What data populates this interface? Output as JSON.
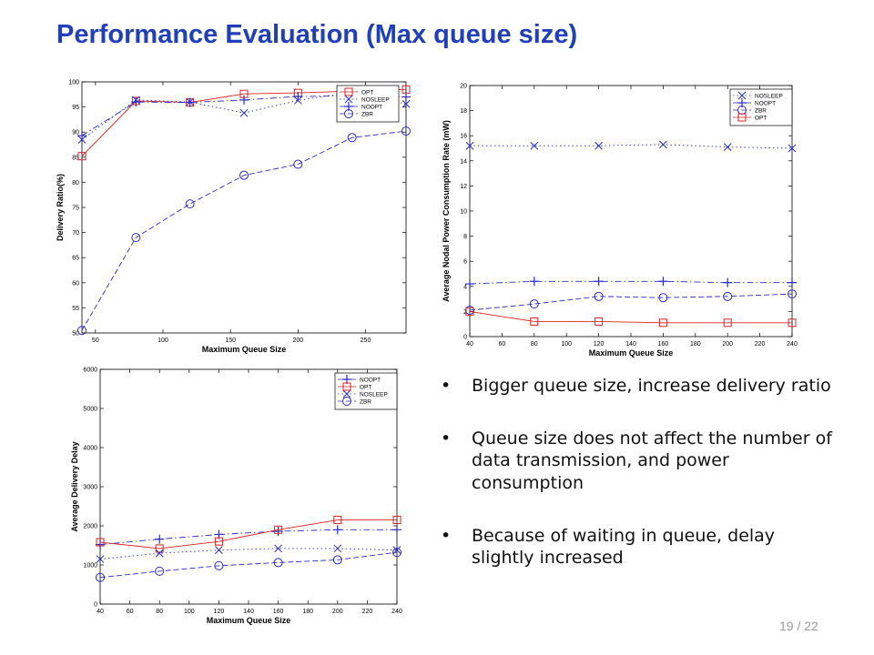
{
  "slide": {
    "title": "Performance Evaluation (Max queue size)",
    "page": "19 / 22",
    "bullets": [
      "Bigger queue size, increase delivery ratio",
      "Queue size does not affect the number of data transmission, and power consumption",
      "Because of waiting in queue, delay slightly increased"
    ]
  },
  "chart_data": [
    {
      "type": "line",
      "xlabel": "Maximum Queue Size",
      "ylabel": "Delivery Ratio(%)",
      "xlim": [
        40,
        280
      ],
      "ylim": [
        50,
        100
      ],
      "xticks": [
        50,
        100,
        150,
        200,
        250
      ],
      "yticks": [
        50,
        55,
        60,
        65,
        70,
        75,
        80,
        85,
        90,
        95,
        100
      ],
      "legend_position": "top-right",
      "series": [
        {
          "name": "OPT",
          "color": "#e02020",
          "marker": "square",
          "dash": "solid",
          "x": [
            40,
            80,
            120,
            160,
            200,
            280
          ],
          "y": [
            85.2,
            96.2,
            95.9,
            97.6,
            97.8,
            98.5
          ]
        },
        {
          "name": "NOSLEEP",
          "color": "#2a2ad0",
          "marker": "x",
          "dash": "dotted",
          "x": [
            40,
            80,
            120,
            160,
            200,
            240,
            280
          ],
          "y": [
            88.5,
            96.4,
            96.0,
            93.8,
            96.3,
            98.0,
            95.6
          ]
        },
        {
          "name": "NOOPT",
          "color": "#2a2ad0",
          "marker": "plus",
          "dash": "dashdot",
          "x": [
            40,
            80,
            120,
            160,
            200,
            240,
            280
          ],
          "y": [
            89.3,
            96.0,
            95.9,
            96.4,
            97.1,
            97.2,
            97.0
          ]
        },
        {
          "name": "ZBR",
          "color": "#2a2ad0",
          "marker": "circle",
          "dash": "dashed",
          "x": [
            40,
            80,
            120,
            160,
            200,
            240,
            280
          ],
          "y": [
            50.5,
            69.0,
            75.7,
            81.4,
            83.6,
            88.9,
            90.2
          ]
        }
      ]
    },
    {
      "type": "line",
      "xlabel": "Maximum Queue Size",
      "ylabel": "Average Nodal Power Consumption Rate (mW)",
      "xlim": [
        40,
        240
      ],
      "ylim": [
        0,
        20
      ],
      "xticks": [
        40,
        60,
        80,
        100,
        120,
        140,
        160,
        180,
        200,
        220,
        240
      ],
      "yticks": [
        0,
        2,
        4,
        6,
        8,
        10,
        12,
        14,
        16,
        18,
        20
      ],
      "legend_position": "top-right",
      "series": [
        {
          "name": "NOSLEEP",
          "color": "#2a2ad0",
          "marker": "x",
          "dash": "dotted",
          "x": [
            40,
            80,
            120,
            160,
            200,
            240
          ],
          "y": [
            15.2,
            15.2,
            15.2,
            15.3,
            15.1,
            15.0
          ]
        },
        {
          "name": "NOOPT",
          "color": "#2a2ad0",
          "marker": "plus",
          "dash": "dashdot",
          "x": [
            40,
            80,
            120,
            160,
            200,
            240
          ],
          "y": [
            4.2,
            4.4,
            4.4,
            4.4,
            4.3,
            4.3
          ]
        },
        {
          "name": "ZBR",
          "color": "#2a2ad0",
          "marker": "circle",
          "dash": "dashed",
          "x": [
            40,
            80,
            120,
            160,
            200,
            240
          ],
          "y": [
            2.1,
            2.6,
            3.2,
            3.1,
            3.2,
            3.4
          ]
        },
        {
          "name": "OPT",
          "color": "#e02020",
          "marker": "square",
          "dash": "solid",
          "x": [
            40,
            80,
            120,
            160,
            200,
            240
          ],
          "y": [
            2.0,
            1.2,
            1.2,
            1.1,
            1.1,
            1.1
          ]
        }
      ]
    },
    {
      "type": "line",
      "xlabel": "Maximum Queue Size",
      "ylabel": "Average Delivery Delay",
      "xlim": [
        40,
        240
      ],
      "ylim": [
        0,
        6000
      ],
      "xticks": [
        40,
        60,
        80,
        100,
        120,
        140,
        160,
        180,
        200,
        220,
        240
      ],
      "yticks": [
        0,
        1000,
        2000,
        3000,
        4000,
        5000,
        6000
      ],
      "legend_position": "top-right",
      "series": [
        {
          "name": "NOOPT",
          "color": "#2a2ad0",
          "marker": "plus",
          "dash": "dashdot",
          "x": [
            40,
            80,
            120,
            160,
            200,
            240
          ],
          "y": [
            1520,
            1660,
            1780,
            1860,
            1900,
            1900
          ]
        },
        {
          "name": "OPT",
          "color": "#e02020",
          "marker": "square",
          "dash": "solid",
          "x": [
            40,
            80,
            120,
            160,
            200,
            240
          ],
          "y": [
            1580,
            1420,
            1600,
            1900,
            2150,
            2150
          ]
        },
        {
          "name": "NOSLEEP",
          "color": "#2a2ad0",
          "marker": "x",
          "dash": "dotted",
          "x": [
            40,
            80,
            120,
            160,
            200,
            240
          ],
          "y": [
            1150,
            1300,
            1380,
            1420,
            1420,
            1380
          ]
        },
        {
          "name": "ZBR",
          "color": "#2a2ad0",
          "marker": "circle",
          "dash": "dashed",
          "x": [
            40,
            80,
            120,
            160,
            200,
            240
          ],
          "y": [
            680,
            840,
            980,
            1060,
            1130,
            1320
          ]
        }
      ]
    }
  ]
}
